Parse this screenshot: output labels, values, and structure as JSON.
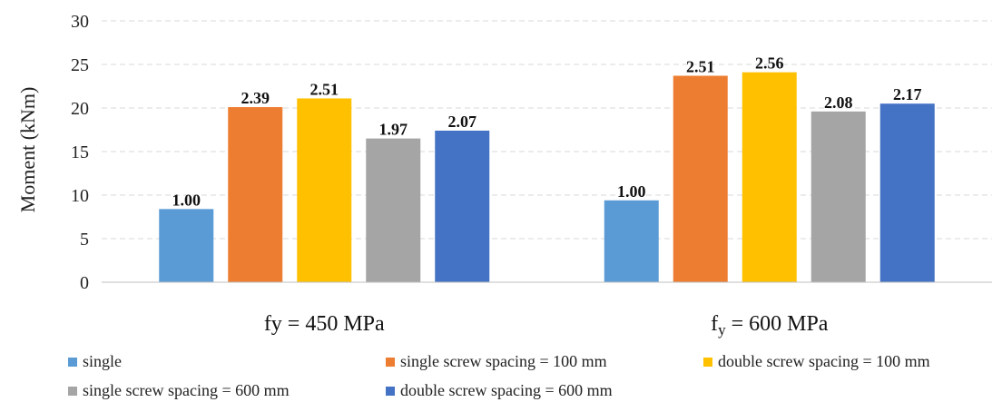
{
  "chart_data": {
    "type": "bar",
    "categories": [
      "fy = 450 MPa",
      "fy = 600 MPa"
    ],
    "category_labels": [
      {
        "main": "fy = 450 MPa"
      },
      {
        "prefix": "f",
        "sub": "y",
        "suffix": " = 600 MPa"
      }
    ],
    "ylabel": "Moment (kNm)",
    "xlabel": "",
    "ylim": [
      0,
      30
    ],
    "yticks": [
      0,
      5,
      10,
      15,
      20,
      25,
      30
    ],
    "grid": true,
    "legend_position": "bottom",
    "series": [
      {
        "name": "single",
        "color": "#5B9BD5",
        "values": [
          8.4,
          9.4
        ],
        "labels": [
          "1.00",
          "1.00"
        ]
      },
      {
        "name": "single screw spacing = 100 mm",
        "color": "#ED7D31",
        "values": [
          20.1,
          23.7
        ],
        "labels": [
          "2.39",
          "2.51"
        ]
      },
      {
        "name": "double screw spacing = 100 mm",
        "color": "#FFC000",
        "values": [
          21.1,
          24.1
        ],
        "labels": [
          "2.51",
          "2.56"
        ]
      },
      {
        "name": "single screw spacing = 600 mm",
        "color": "#A5A5A5",
        "values": [
          16.5,
          19.6
        ],
        "labels": [
          "1.97",
          "2.08"
        ]
      },
      {
        "name": "double screw spacing = 600 mm",
        "color": "#4472C4",
        "values": [
          17.4,
          20.5
        ],
        "labels": [
          "2.07",
          "2.17"
        ]
      }
    ]
  }
}
